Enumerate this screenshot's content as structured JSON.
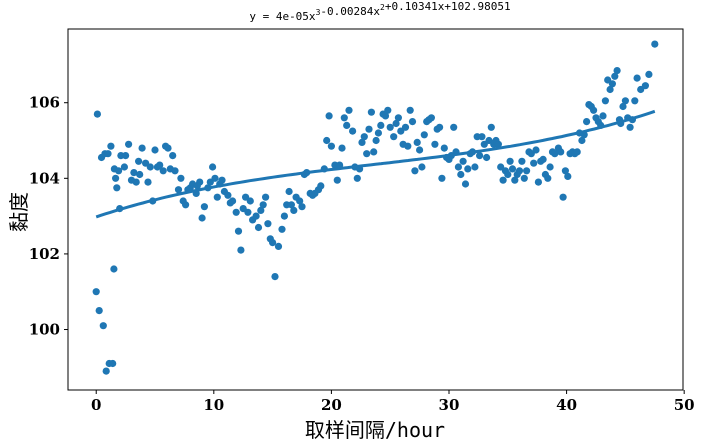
{
  "chart_data": {
    "type": "scatter",
    "title": "y = 4e-05x³-0.00284x²+0.10341x+102.98051",
    "xlabel": "取样间隔/hour",
    "ylabel": "黏度",
    "xlim": [
      -2.4,
      49.9
    ],
    "ylim": [
      98.4,
      107.95
    ],
    "xticks": [
      0,
      10,
      20,
      30,
      40,
      50
    ],
    "yticks": [
      100,
      102,
      104,
      106
    ],
    "colors": {
      "points": "#1f77b4",
      "fit_line": "#1f77b4"
    },
    "fit": {
      "a3": 4e-05,
      "a2": -0.00284,
      "a1": 0.10341,
      "a0": 102.98051,
      "x_range": [
        0,
        47.5
      ]
    },
    "series": [
      {
        "points": [
          [
            0.0,
            101.0
          ],
          [
            0.1,
            105.7
          ],
          [
            0.25,
            100.5
          ],
          [
            0.45,
            104.55
          ],
          [
            0.6,
            100.1
          ],
          [
            0.75,
            104.65
          ],
          [
            0.85,
            98.9
          ],
          [
            1.0,
            104.65
          ],
          [
            1.1,
            99.1
          ],
          [
            1.25,
            104.85
          ],
          [
            1.4,
            99.1
          ],
          [
            1.5,
            101.6
          ],
          [
            1.55,
            104.25
          ],
          [
            1.65,
            104.0
          ],
          [
            1.75,
            103.75
          ],
          [
            1.9,
            104.2
          ],
          [
            2.0,
            103.2
          ],
          [
            2.1,
            104.6
          ],
          [
            2.4,
            104.3
          ],
          [
            2.5,
            104.6
          ],
          [
            2.75,
            104.9
          ],
          [
            3.0,
            103.95
          ],
          [
            3.2,
            104.15
          ],
          [
            3.4,
            103.9
          ],
          [
            3.6,
            104.45
          ],
          [
            3.7,
            104.1
          ],
          [
            3.9,
            104.8
          ],
          [
            4.2,
            104.4
          ],
          [
            4.4,
            103.9
          ],
          [
            4.6,
            104.3
          ],
          [
            4.8,
            103.4
          ],
          [
            5.0,
            104.75
          ],
          [
            5.2,
            104.3
          ],
          [
            5.4,
            104.35
          ],
          [
            5.7,
            104.2
          ],
          [
            5.9,
            104.85
          ],
          [
            6.1,
            104.8
          ],
          [
            6.3,
            104.25
          ],
          [
            6.5,
            104.6
          ],
          [
            6.7,
            104.2
          ],
          [
            7.0,
            103.7
          ],
          [
            7.2,
            104.0
          ],
          [
            7.4,
            103.4
          ],
          [
            7.6,
            103.3
          ],
          [
            7.8,
            103.7
          ],
          [
            8.0,
            103.75
          ],
          [
            8.2,
            103.85
          ],
          [
            8.5,
            103.6
          ],
          [
            8.6,
            103.8
          ],
          [
            8.8,
            103.9
          ],
          [
            9.0,
            102.95
          ],
          [
            9.2,
            103.25
          ],
          [
            9.5,
            103.75
          ],
          [
            9.7,
            103.9
          ],
          [
            9.9,
            104.3
          ],
          [
            10.1,
            104.0
          ],
          [
            10.3,
            103.5
          ],
          [
            10.5,
            103.85
          ],
          [
            10.7,
            103.95
          ],
          [
            10.9,
            103.65
          ],
          [
            11.2,
            103.55
          ],
          [
            11.4,
            103.35
          ],
          [
            11.6,
            103.4
          ],
          [
            11.9,
            103.1
          ],
          [
            12.1,
            102.6
          ],
          [
            12.3,
            102.1
          ],
          [
            12.5,
            103.2
          ],
          [
            12.7,
            103.5
          ],
          [
            12.9,
            103.1
          ],
          [
            13.1,
            103.4
          ],
          [
            13.3,
            102.9
          ],
          [
            13.6,
            103.0
          ],
          [
            13.8,
            102.7
          ],
          [
            14.0,
            103.15
          ],
          [
            14.2,
            103.3
          ],
          [
            14.4,
            103.5
          ],
          [
            14.6,
            102.8
          ],
          [
            14.8,
            102.4
          ],
          [
            15.0,
            102.3
          ],
          [
            15.2,
            101.4
          ],
          [
            15.5,
            102.2
          ],
          [
            15.8,
            102.65
          ],
          [
            16.0,
            103.0
          ],
          [
            16.2,
            103.3
          ],
          [
            16.4,
            103.65
          ],
          [
            16.6,
            103.3
          ],
          [
            16.8,
            103.15
          ],
          [
            17.0,
            103.5
          ],
          [
            17.3,
            103.4
          ],
          [
            17.5,
            103.25
          ],
          [
            17.7,
            104.1
          ],
          [
            17.9,
            104.15
          ],
          [
            18.2,
            103.6
          ],
          [
            18.4,
            103.55
          ],
          [
            18.6,
            103.6
          ],
          [
            18.9,
            103.7
          ],
          [
            19.1,
            103.8
          ],
          [
            19.4,
            104.25
          ],
          [
            19.6,
            105.0
          ],
          [
            19.8,
            105.65
          ],
          [
            20.0,
            104.85
          ],
          [
            20.3,
            104.35
          ],
          [
            20.5,
            103.95
          ],
          [
            20.7,
            104.35
          ],
          [
            20.9,
            104.8
          ],
          [
            21.1,
            105.6
          ],
          [
            21.3,
            105.4
          ],
          [
            21.5,
            105.8
          ],
          [
            21.8,
            105.25
          ],
          [
            22.0,
            104.3
          ],
          [
            22.2,
            104.0
          ],
          [
            22.4,
            104.25
          ],
          [
            22.6,
            104.95
          ],
          [
            22.8,
            105.1
          ],
          [
            23.0,
            104.65
          ],
          [
            23.2,
            105.3
          ],
          [
            23.4,
            105.75
          ],
          [
            23.6,
            104.7
          ],
          [
            23.8,
            105.0
          ],
          [
            24.0,
            105.2
          ],
          [
            24.2,
            105.4
          ],
          [
            24.4,
            105.7
          ],
          [
            24.6,
            105.65
          ],
          [
            24.8,
            105.8
          ],
          [
            25.0,
            105.35
          ],
          [
            25.3,
            105.1
          ],
          [
            25.5,
            105.45
          ],
          [
            25.7,
            105.6
          ],
          [
            25.9,
            105.25
          ],
          [
            26.1,
            104.9
          ],
          [
            26.3,
            105.35
          ],
          [
            26.5,
            104.85
          ],
          [
            26.7,
            105.8
          ],
          [
            26.9,
            105.5
          ],
          [
            27.1,
            104.2
          ],
          [
            27.3,
            104.95
          ],
          [
            27.5,
            104.75
          ],
          [
            27.7,
            104.3
          ],
          [
            27.9,
            105.15
          ],
          [
            28.1,
            105.5
          ],
          [
            28.3,
            105.55
          ],
          [
            28.5,
            105.6
          ],
          [
            28.8,
            104.9
          ],
          [
            29.0,
            105.3
          ],
          [
            29.2,
            105.35
          ],
          [
            29.4,
            104.0
          ],
          [
            29.6,
            104.8
          ],
          [
            29.8,
            104.55
          ],
          [
            30.0,
            104.5
          ],
          [
            30.2,
            104.6
          ],
          [
            30.4,
            105.35
          ],
          [
            30.6,
            104.7
          ],
          [
            30.8,
            104.3
          ],
          [
            31.0,
            104.1
          ],
          [
            31.2,
            104.45
          ],
          [
            31.4,
            103.85
          ],
          [
            31.6,
            104.25
          ],
          [
            31.8,
            104.65
          ],
          [
            32.0,
            104.7
          ],
          [
            32.2,
            104.3
          ],
          [
            32.4,
            105.1
          ],
          [
            32.6,
            104.6
          ],
          [
            32.8,
            105.1
          ],
          [
            33.0,
            104.9
          ],
          [
            33.2,
            104.55
          ],
          [
            33.4,
            105.0
          ],
          [
            33.6,
            105.35
          ],
          [
            33.8,
            104.9
          ],
          [
            34.0,
            105.0
          ],
          [
            34.2,
            104.9
          ],
          [
            34.4,
            104.3
          ],
          [
            34.6,
            103.95
          ],
          [
            34.8,
            104.2
          ],
          [
            35.0,
            104.1
          ],
          [
            35.2,
            104.45
          ],
          [
            35.4,
            104.25
          ],
          [
            35.6,
            103.95
          ],
          [
            35.8,
            104.1
          ],
          [
            36.0,
            104.2
          ],
          [
            36.2,
            104.45
          ],
          [
            36.4,
            104.0
          ],
          [
            36.6,
            104.2
          ],
          [
            36.8,
            104.7
          ],
          [
            37.0,
            104.65
          ],
          [
            37.2,
            104.4
          ],
          [
            37.4,
            104.75
          ],
          [
            37.6,
            103.9
          ],
          [
            37.8,
            104.45
          ],
          [
            38.0,
            104.5
          ],
          [
            38.2,
            104.1
          ],
          [
            38.4,
            104.0
          ],
          [
            38.6,
            104.3
          ],
          [
            38.8,
            104.7
          ],
          [
            39.0,
            104.65
          ],
          [
            39.3,
            104.8
          ],
          [
            39.5,
            104.7
          ],
          [
            39.7,
            103.5
          ],
          [
            39.9,
            104.2
          ],
          [
            40.1,
            104.05
          ],
          [
            40.3,
            104.65
          ],
          [
            40.5,
            104.7
          ],
          [
            40.7,
            104.65
          ],
          [
            40.9,
            104.7
          ],
          [
            41.1,
            105.2
          ],
          [
            41.3,
            105.0
          ],
          [
            41.5,
            105.15
          ],
          [
            41.7,
            105.5
          ],
          [
            41.9,
            105.95
          ],
          [
            42.1,
            105.9
          ],
          [
            42.3,
            105.8
          ],
          [
            42.5,
            105.6
          ],
          [
            42.7,
            105.5
          ],
          [
            42.9,
            105.4
          ],
          [
            43.1,
            105.65
          ],
          [
            43.3,
            106.05
          ],
          [
            43.5,
            106.6
          ],
          [
            43.7,
            106.35
          ],
          [
            43.9,
            106.5
          ],
          [
            44.1,
            106.7
          ],
          [
            44.3,
            106.85
          ],
          [
            44.5,
            105.55
          ],
          [
            44.6,
            105.45
          ],
          [
            44.8,
            105.9
          ],
          [
            45.0,
            106.05
          ],
          [
            45.2,
            105.6
          ],
          [
            45.4,
            105.35
          ],
          [
            45.6,
            105.55
          ],
          [
            45.8,
            106.05
          ],
          [
            46.0,
            106.65
          ],
          [
            46.3,
            106.35
          ],
          [
            46.7,
            106.45
          ],
          [
            47.0,
            106.75
          ],
          [
            47.5,
            107.55
          ]
        ]
      }
    ]
  }
}
